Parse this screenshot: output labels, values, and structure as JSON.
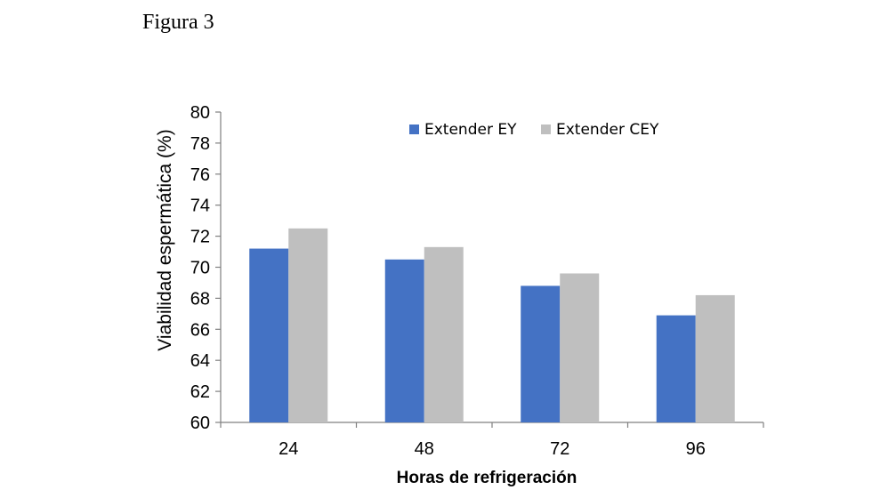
{
  "figure_title": "Figura 3",
  "chart_data": {
    "type": "bar",
    "categories": [
      "24",
      "48",
      "72",
      "96"
    ],
    "series": [
      {
        "name": "Extender EY",
        "color": "#4472C4",
        "values": [
          71.2,
          70.5,
          68.8,
          66.9
        ]
      },
      {
        "name": "Extender CEY",
        "color": "#BFBFBF",
        "values": [
          72.5,
          71.3,
          69.6,
          68.2
        ]
      }
    ],
    "xlabel": "Horas de refrigeración",
    "ylabel": "Viabilidad espermática (%)",
    "ylim": [
      60,
      80
    ],
    "yticks": [
      60,
      62,
      64,
      66,
      68,
      70,
      72,
      74,
      76,
      78,
      80
    ],
    "grid": false,
    "legend_position": "top-right"
  }
}
